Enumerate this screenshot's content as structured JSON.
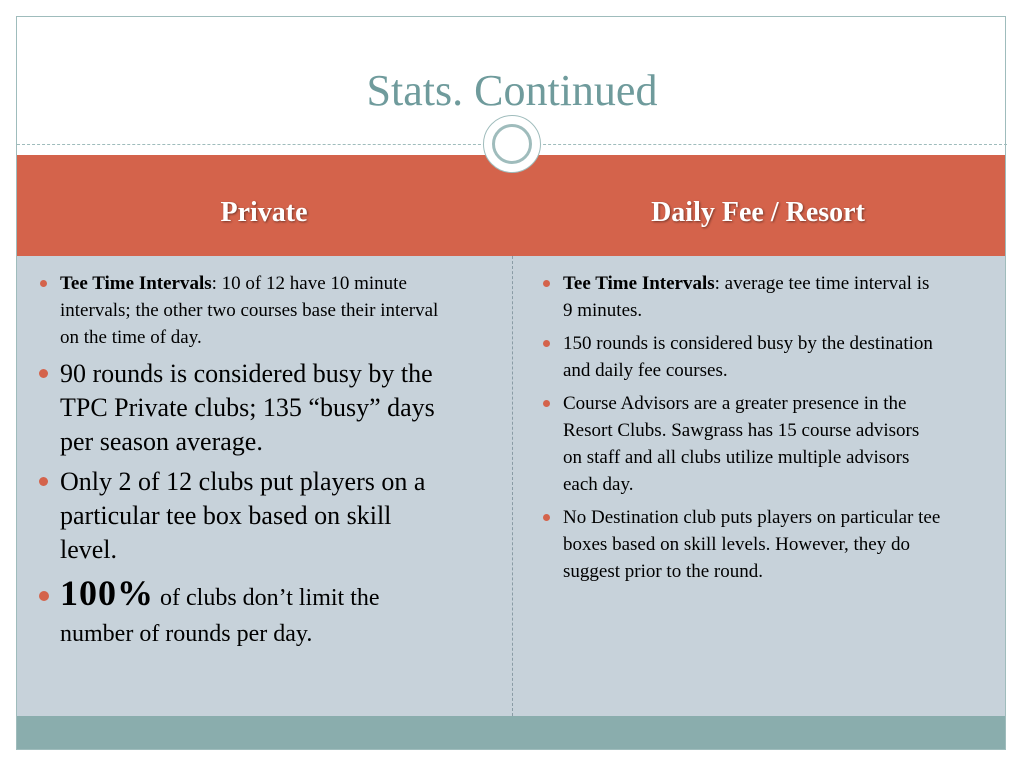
{
  "slide": {
    "title": "Stats. Continued"
  },
  "columns": {
    "left_header": "Private",
    "right_header": "Daily Fee / Resort"
  },
  "left_items": [
    {
      "bold": "Tee Time Intervals",
      "text": ": 10 of 12 have 10 minute intervals; the other two courses base their interval on the time of day."
    },
    {
      "text": "90 rounds is considered busy by the TPC Private clubs; 135 “busy” days per season average."
    },
    {
      "text": "Only 2 of 12 clubs put players on a particular tee box based on skill level."
    },
    {
      "big": "100%",
      "text": " of clubs don’t limit the number of rounds per day."
    }
  ],
  "right_items": [
    {
      "bold": "Tee Time Intervals",
      "text": ": average tee time interval is 9 minutes."
    },
    {
      "text": "150 rounds is considered busy by the destination and daily fee courses."
    },
    {
      "text": "Course Advisors are a greater presence in the Resort Clubs.  Sawgrass has 15 course advisors on staff and all clubs utilize multiple advisors each day."
    },
    {
      "text": "No Destination club puts players on particular tee boxes based on skill levels.  However, they do suggest prior to the round."
    }
  ],
  "colors": {
    "accent": "#d4634b",
    "title": "#6f9b9c",
    "body_bg": "#c7d2da",
    "footer": "#8aadad"
  }
}
